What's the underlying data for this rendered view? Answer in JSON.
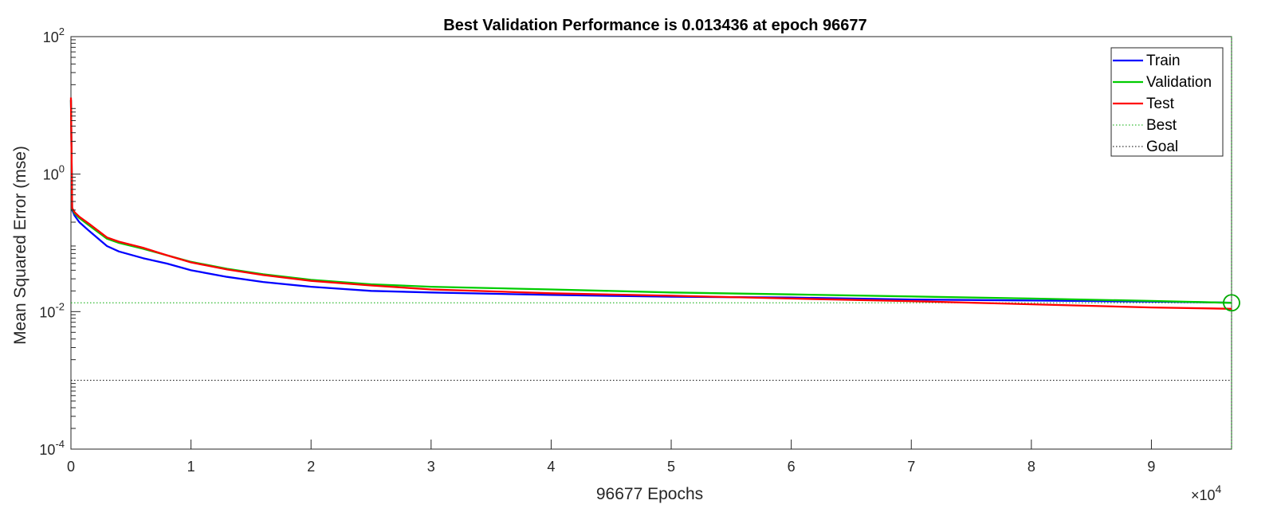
{
  "chart_data": {
    "type": "line",
    "title": "Best Validation Performance is 0.013436 at epoch 96677",
    "xlabel": "96677 Epochs",
    "ylabel": "Mean Squared Error  (mse)",
    "x_multiplier_label": "×10",
    "x_multiplier_exp": "4",
    "xlim": [
      0,
      96677
    ],
    "ylim": [
      0.0001,
      100
    ],
    "yscale": "log",
    "grid": false,
    "legend_position": "top-right",
    "x_ticks": [
      {
        "value": 0,
        "label": "0"
      },
      {
        "value": 10000,
        "label": "1"
      },
      {
        "value": 20000,
        "label": "2"
      },
      {
        "value": 30000,
        "label": "3"
      },
      {
        "value": 40000,
        "label": "4"
      },
      {
        "value": 50000,
        "label": "5"
      },
      {
        "value": 60000,
        "label": "6"
      },
      {
        "value": 70000,
        "label": "7"
      },
      {
        "value": 80000,
        "label": "8"
      },
      {
        "value": 90000,
        "label": "9"
      }
    ],
    "y_ticks": [
      {
        "value": 0.0001,
        "base": "10",
        "exp": "-4"
      },
      {
        "value": 0.01,
        "base": "10",
        "exp": "-2"
      },
      {
        "value": 1,
        "base": "10",
        "exp": "0"
      },
      {
        "value": 100,
        "base": "10",
        "exp": "2"
      }
    ],
    "series": [
      {
        "name": "Train",
        "color": "#0000ff",
        "x": [
          0,
          100,
          300,
          700,
          1500,
          3000,
          4000,
          6000,
          8000,
          10000,
          13000,
          16000,
          20000,
          25000,
          30000,
          40000,
          50000,
          60000,
          70000,
          80000,
          90000,
          96677
        ],
        "y": [
          12,
          0.3,
          0.25,
          0.2,
          0.15,
          0.09,
          0.075,
          0.06,
          0.05,
          0.04,
          0.032,
          0.027,
          0.023,
          0.02,
          0.019,
          0.0175,
          0.0165,
          0.016,
          0.015,
          0.0145,
          0.014,
          0.0135
        ]
      },
      {
        "name": "Validation",
        "color": "#00cc00",
        "x": [
          0,
          100,
          300,
          700,
          1500,
          3000,
          4000,
          6000,
          8000,
          10000,
          13000,
          16000,
          20000,
          25000,
          30000,
          40000,
          50000,
          60000,
          70000,
          80000,
          90000,
          96677
        ],
        "y": [
          12,
          0.31,
          0.27,
          0.23,
          0.18,
          0.115,
          0.1,
          0.082,
          0.066,
          0.053,
          0.042,
          0.035,
          0.029,
          0.025,
          0.023,
          0.021,
          0.019,
          0.0178,
          0.0166,
          0.0155,
          0.0143,
          0.013436
        ]
      },
      {
        "name": "Test",
        "color": "#ff0000",
        "x": [
          0,
          100,
          300,
          700,
          1500,
          3000,
          4000,
          6000,
          8000,
          10000,
          13000,
          16000,
          20000,
          25000,
          30000,
          40000,
          50000,
          60000,
          70000,
          80000,
          90000,
          96677
        ],
        "y": [
          13,
          0.32,
          0.28,
          0.24,
          0.19,
          0.12,
          0.104,
          0.085,
          0.066,
          0.052,
          0.041,
          0.034,
          0.028,
          0.024,
          0.021,
          0.0185,
          0.017,
          0.0155,
          0.0142,
          0.0128,
          0.0115,
          0.011
        ]
      }
    ],
    "best": {
      "name": "Best",
      "x": 96677,
      "y": 0.013436,
      "color": "#00aa00"
    },
    "goal": {
      "name": "Goal",
      "y": 0.001,
      "color": "#000000"
    }
  }
}
